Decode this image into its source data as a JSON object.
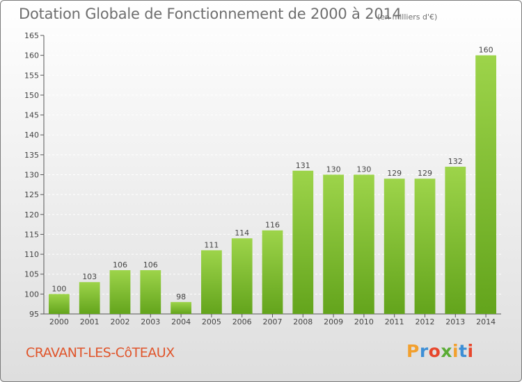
{
  "chart_data": {
    "type": "bar",
    "title": "Dotation Globale de Fonctionnement de 2000 à 2014",
    "subtitle": "(en milliers d'€)",
    "categories": [
      "2000",
      "2001",
      "2002",
      "2003",
      "2004",
      "2005",
      "2006",
      "2007",
      "2008",
      "2009",
      "2010",
      "2011",
      "2012",
      "2013",
      "2014"
    ],
    "values": [
      100,
      103,
      106,
      106,
      98,
      111,
      114,
      116,
      131,
      130,
      130,
      129,
      129,
      132,
      160
    ],
    "xlabel": "",
    "ylabel": "",
    "ylim": [
      95,
      165
    ],
    "yticks": [
      95,
      100,
      105,
      110,
      115,
      120,
      125,
      130,
      135,
      140,
      145,
      150,
      155,
      160,
      165
    ],
    "grid": true,
    "data_labels": true,
    "bar_color": "#7db82e"
  },
  "footer": {
    "commune": "CRAVANT-LES-CôTEAUX"
  },
  "logo": {
    "letters": [
      "P",
      "r",
      "o",
      "x",
      "i",
      "t",
      "i"
    ],
    "colors": [
      "#f2a02e",
      "#3d8fd6",
      "#e7462c",
      "#5aac34",
      "#f2a02e",
      "#3d8fd6",
      "#e7462c"
    ]
  }
}
